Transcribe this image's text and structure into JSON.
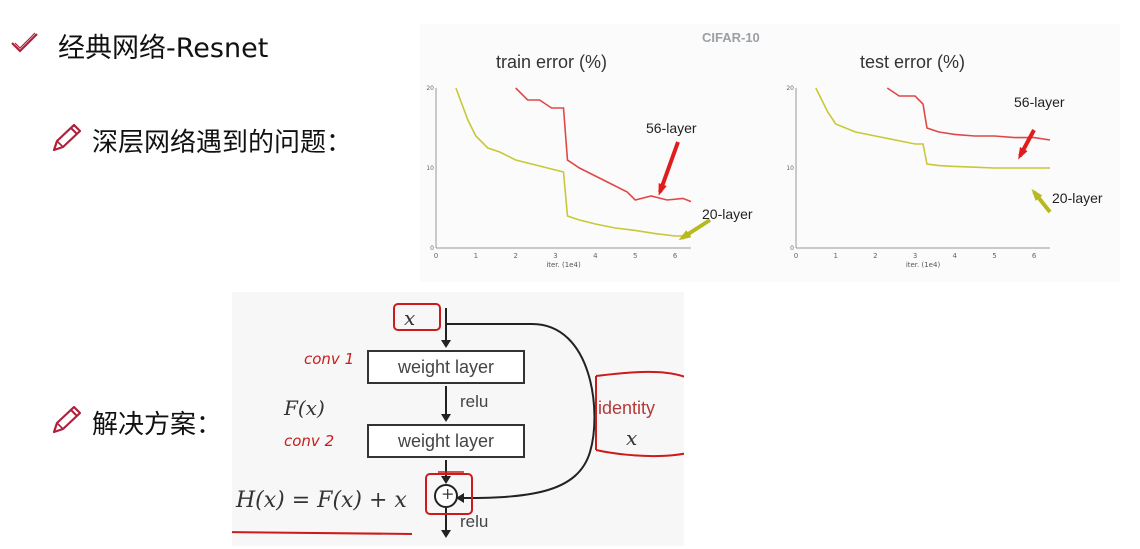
{
  "headings": {
    "main": "经典网络-Resnet",
    "problem": "深层网络遇到的问题：",
    "solution": "解决方案："
  },
  "icons": {
    "main_bullet": "checkmark-icon",
    "sub_bullet": "pencil-icon"
  },
  "chart": {
    "dataset_label": "CIFAR-10",
    "series_colors": {
      "56-layer": "#e04848",
      "20-layer": "#c8c838"
    },
    "arrow_colors": {
      "56-layer": "#e01c1c",
      "20-layer": "#b8b820"
    },
    "panels": [
      {
        "title": "train error (%)",
        "xlabel": "iter. (1e4)",
        "labels": [
          "56-layer",
          "20-layer"
        ]
      },
      {
        "title": "test error (%)",
        "xlabel": "iter. (1e4)",
        "labels": [
          "56-layer",
          "20-layer"
        ]
      }
    ]
  },
  "chart_data": [
    {
      "type": "line",
      "title": "train error (%)",
      "xlabel": "iter. (1e4)",
      "ylabel": "",
      "xlim": [
        0,
        6.4
      ],
      "ylim": [
        0,
        20
      ],
      "xticks": [
        "0",
        "1",
        "2",
        "3",
        "4",
        "5",
        "6"
      ],
      "yticks": [
        "0",
        "10",
        "20"
      ],
      "series": [
        {
          "name": "56-layer",
          "x": [
            2.0,
            2.3,
            2.6,
            2.9,
            3.2,
            3.3,
            3.6,
            4.0,
            4.4,
            4.8,
            5.0,
            5.4,
            5.8,
            6.2,
            6.4
          ],
          "y": [
            20,
            18.5,
            18.5,
            17.5,
            17.5,
            11,
            10,
            9,
            8,
            7,
            6,
            6.5,
            6,
            6.2,
            5.8
          ]
        },
        {
          "name": "20-layer",
          "x": [
            0.5,
            0.8,
            1.0,
            1.3,
            1.6,
            2.0,
            2.4,
            2.8,
            3.2,
            3.3,
            3.6,
            4.0,
            4.5,
            5.0,
            5.5,
            6.0,
            6.4
          ],
          "y": [
            20,
            16,
            14,
            12.5,
            12,
            11,
            10.5,
            10,
            9.5,
            4,
            3.5,
            3,
            2.5,
            2.2,
            1.8,
            1.5,
            1.5
          ]
        }
      ]
    },
    {
      "type": "line",
      "title": "test error (%)",
      "xlabel": "iter. (1e4)",
      "ylabel": "",
      "xlim": [
        0,
        6.4
      ],
      "ylim": [
        0,
        20
      ],
      "xticks": [
        "0",
        "1",
        "2",
        "3",
        "4",
        "5",
        "6"
      ],
      "yticks": [
        "0",
        "10",
        "20"
      ],
      "series": [
        {
          "name": "56-layer",
          "x": [
            2.3,
            2.6,
            3.0,
            3.2,
            3.3,
            3.6,
            4.0,
            4.5,
            5.0,
            5.5,
            6.0,
            6.4
          ],
          "y": [
            20,
            19,
            19,
            18,
            15,
            14.5,
            14.2,
            14,
            14,
            13.8,
            13.8,
            13.5
          ]
        },
        {
          "name": "20-layer",
          "x": [
            0.5,
            0.8,
            1.0,
            1.5,
            2.0,
            2.5,
            3.0,
            3.2,
            3.3,
            3.6,
            4.0,
            4.5,
            5.0,
            5.5,
            6.0,
            6.4
          ],
          "y": [
            20,
            17,
            15.5,
            14.5,
            14,
            13.5,
            13,
            13,
            10.5,
            10.3,
            10.2,
            10.1,
            10,
            10,
            10,
            10
          ]
        }
      ]
    }
  ],
  "block": {
    "input": "x",
    "layer1": "weight layer",
    "layer2": "weight layer",
    "relu1": "relu",
    "relu2": "relu",
    "fx": "F(x)",
    "identity": "identity",
    "identity_x": "x",
    "hx": "H(x) = F(x) + x",
    "plus": "+",
    "annotation_conv1": "conv 1",
    "annotation_conv2": "conv 2"
  },
  "annotation_color": "#cc1b1b"
}
